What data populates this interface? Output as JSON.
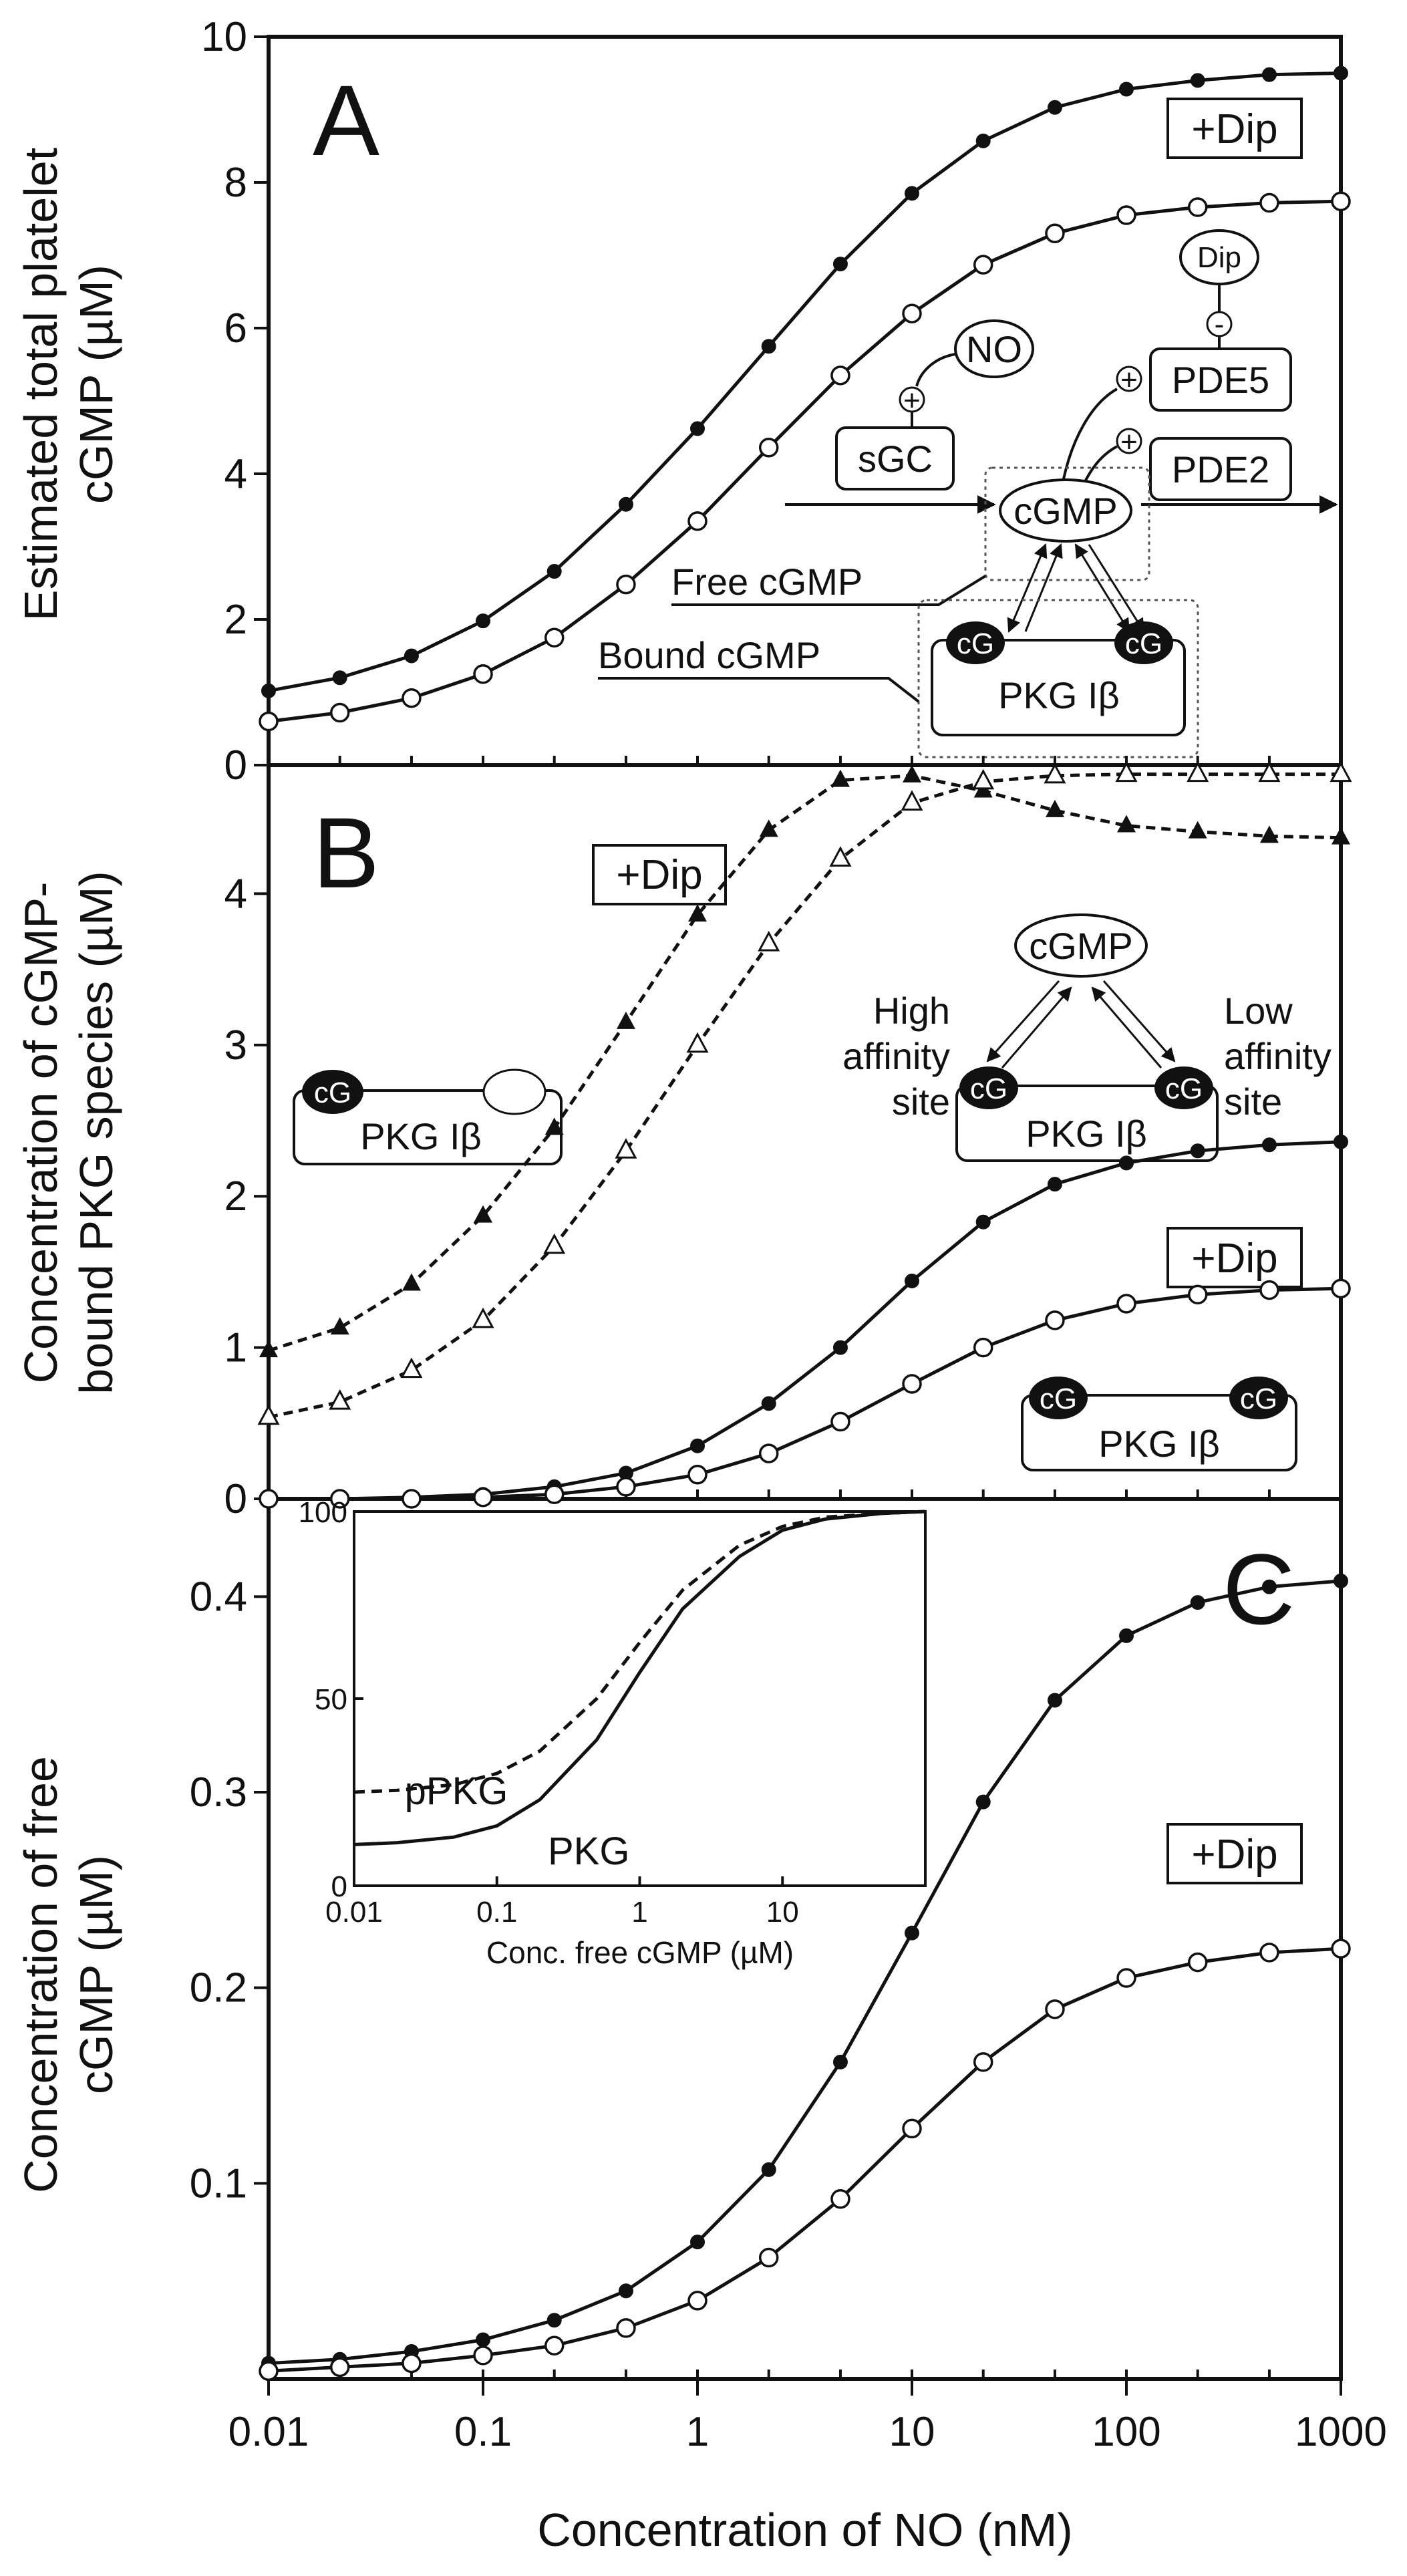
{
  "x_axis": {
    "label": "Concentration of NO (nM)",
    "ticks": [
      "0.01",
      "0.1",
      "1",
      "10",
      "100",
      "1000"
    ],
    "tick_values": [
      0.01,
      0.1,
      1,
      10,
      100,
      1000
    ],
    "scale": "log",
    "range": [
      0.01,
      1000
    ]
  },
  "chart_data": [
    {
      "panel": "A",
      "type": "line",
      "ylabel_line1": "Estimated total platelet",
      "ylabel_line2": "cGMP (µM)",
      "ylim": [
        0,
        10
      ],
      "yticks": [
        0,
        2,
        4,
        6,
        8,
        10
      ],
      "ytick_labels": [
        "0",
        "2",
        "4",
        "6",
        "8",
        "10"
      ],
      "x": [
        0.01,
        0.0215,
        0.0464,
        0.1,
        0.215,
        0.464,
        1,
        2.15,
        4.64,
        10,
        21.5,
        46.4,
        100,
        215,
        464,
        1000
      ],
      "series": [
        {
          "name": "+Dip",
          "marker": "filled-circle",
          "line": "solid",
          "values": [
            1.02,
            1.2,
            1.5,
            1.98,
            2.66,
            3.58,
            4.62,
            5.75,
            6.88,
            7.85,
            8.57,
            9.03,
            9.28,
            9.4,
            9.48,
            9.5
          ]
        },
        {
          "marker": "open-circle",
          "line": "solid",
          "values": [
            0.6,
            0.72,
            0.92,
            1.25,
            1.75,
            2.48,
            3.35,
            4.36,
            5.35,
            6.2,
            6.87,
            7.3,
            7.55,
            7.66,
            7.72,
            7.74
          ]
        }
      ],
      "panel_label": "A",
      "annotations": {
        "dip_box": "+Dip",
        "diagram": {
          "dip": "Dip",
          "minus": "-",
          "plus": "+",
          "pde5": "PDE5",
          "pde2": "PDE2",
          "no": "NO",
          "sgc": "sGC",
          "cgmp": "cGMP",
          "free_cgmp": "Free cGMP",
          "bound_cgmp": "Bound cGMP",
          "cg": "cG",
          "pkg": "PKG Iβ"
        }
      }
    },
    {
      "panel": "B",
      "type": "line",
      "ylabel_line1": "Concentration of cGMP-",
      "ylabel_line2": "bound PKG species (µM)",
      "ylim": [
        0,
        4.85
      ],
      "yticks": [
        0,
        1,
        2,
        3,
        4
      ],
      "ytick_labels": [
        "0",
        "1",
        "2",
        "3",
        "4"
      ],
      "x": [
        0.01,
        0.0215,
        0.0464,
        0.1,
        0.215,
        0.464,
        1,
        2.15,
        4.64,
        10,
        21.5,
        46.4,
        100,
        215,
        464,
        1000
      ],
      "series": [
        {
          "marker": "filled-triangle",
          "line": "dashed",
          "values": [
            0.98,
            1.13,
            1.42,
            1.87,
            2.45,
            3.15,
            3.86,
            4.42,
            4.75,
            4.78,
            4.68,
            4.55,
            4.45,
            4.41,
            4.38,
            4.37
          ]
        },
        {
          "marker": "open-triangle",
          "line": "dashed",
          "values": [
            0.54,
            0.64,
            0.85,
            1.18,
            1.67,
            2.3,
            3.0,
            3.67,
            4.23,
            4.6,
            4.74,
            4.78,
            4.79,
            4.79,
            4.79,
            4.79
          ]
        },
        {
          "marker": "filled-circle",
          "line": "solid",
          "values": [
            0.0,
            0.0,
            0.01,
            0.03,
            0.08,
            0.17,
            0.35,
            0.63,
            1.0,
            1.44,
            1.83,
            2.08,
            2.22,
            2.3,
            2.34,
            2.36
          ]
        },
        {
          "marker": "open-circle",
          "line": "solid",
          "values": [
            0.0,
            0.0,
            0.0,
            0.01,
            0.03,
            0.08,
            0.16,
            0.3,
            0.51,
            0.76,
            1.0,
            1.18,
            1.29,
            1.35,
            1.38,
            1.39
          ]
        }
      ],
      "panel_label": "B",
      "annotations": {
        "dip_box_top": "+Dip",
        "dip_box_mid": "+Dip",
        "cg": "cG",
        "pkg": "PKG Iβ",
        "cgmp": "cGMP",
        "high": [
          "High",
          "affinity",
          "site"
        ],
        "low": [
          "Low",
          "affinity",
          "site"
        ]
      }
    },
    {
      "panel": "C",
      "type": "line",
      "ylabel_line1": "Concentration of free",
      "ylabel_line2": "cGMP (µM)",
      "ylim": [
        0,
        0.45
      ],
      "yticks": [
        0.1,
        0.2,
        0.3,
        0.4
      ],
      "ytick_labels": [
        "0.1",
        "0.2",
        "0.3",
        "0.4"
      ],
      "x": [
        0.01,
        0.0215,
        0.0464,
        0.1,
        0.215,
        0.464,
        1,
        2.15,
        4.64,
        10,
        21.5,
        46.4,
        100,
        215,
        464,
        1000
      ],
      "series": [
        {
          "name": "+Dip",
          "marker": "filled-circle",
          "line": "solid",
          "values": [
            0.008,
            0.01,
            0.014,
            0.02,
            0.03,
            0.045,
            0.07,
            0.107,
            0.162,
            0.228,
            0.295,
            0.347,
            0.38,
            0.397,
            0.405,
            0.408
          ]
        },
        {
          "marker": "open-circle",
          "line": "solid",
          "values": [
            0.004,
            0.006,
            0.008,
            0.012,
            0.017,
            0.026,
            0.04,
            0.062,
            0.092,
            0.128,
            0.162,
            0.189,
            0.205,
            0.213,
            0.218,
            0.22
          ]
        }
      ],
      "panel_label": "C",
      "annotations": {
        "dip_box": "+Dip"
      },
      "inset": {
        "type": "line",
        "xlabel": "Conc. free cGMP (µM)",
        "xticks": [
          "0.01",
          "0.1",
          "1",
          "10"
        ],
        "xtick_values": [
          0.01,
          0.1,
          1,
          10
        ],
        "xlim": [
          0.01,
          100
        ],
        "yticks": [
          "0",
          "50",
          "100"
        ],
        "ytick_values": [
          0,
          50,
          100
        ],
        "ylim": [
          0,
          100
        ],
        "x": [
          0.01,
          0.02,
          0.05,
          0.1,
          0.2,
          0.5,
          1,
          2,
          5,
          10,
          20,
          50,
          100
        ],
        "series": [
          {
            "name": "pPKG",
            "line": "dashed",
            "values": [
              25,
              25.5,
              27,
              30,
              36,
              50,
              65,
              79,
              91,
              96,
              98.5,
              99.5,
              100
            ]
          },
          {
            "name": "PKG",
            "line": "solid",
            "values": [
              11,
              11.5,
              13,
              16,
              23,
              39,
              57,
              74,
              88,
              95,
              98,
              99.5,
              100
            ]
          }
        ]
      }
    }
  ]
}
